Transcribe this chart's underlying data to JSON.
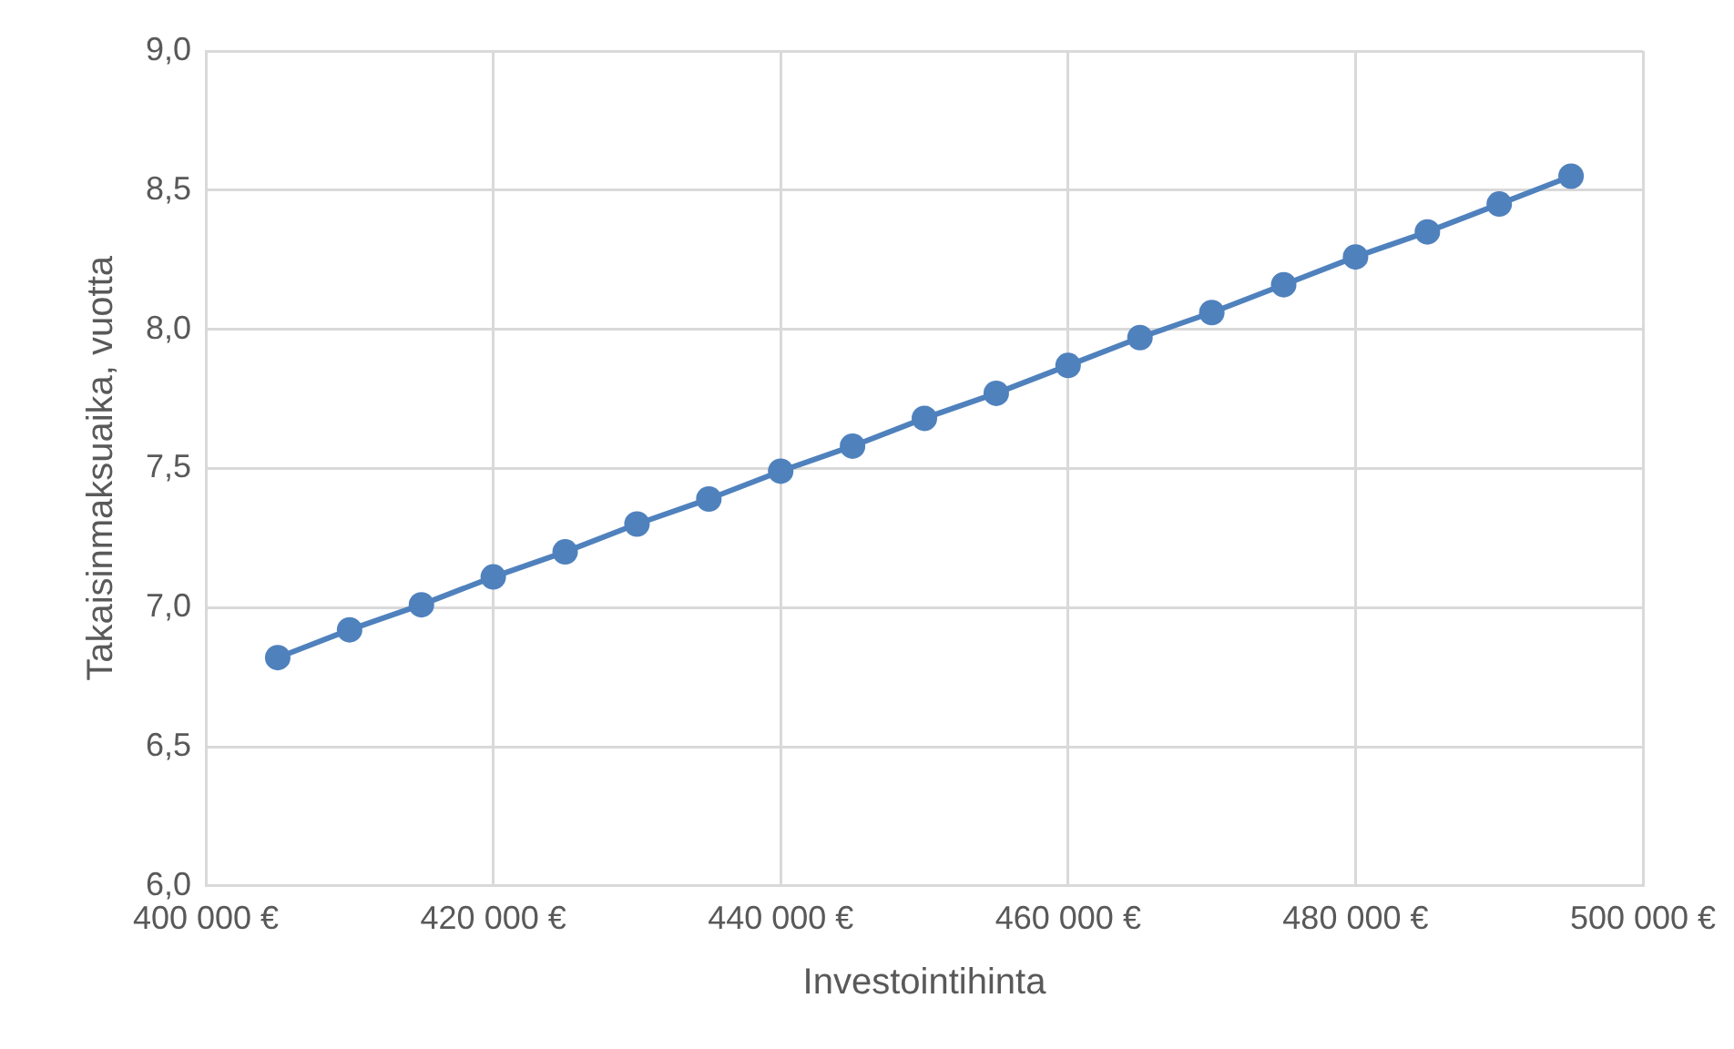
{
  "chart_data": {
    "type": "line",
    "xlabel": "Investointihinta",
    "ylabel": "Takaisinmaksuaika, vuotta",
    "x": [
      405000,
      410000,
      415000,
      420000,
      425000,
      430000,
      435000,
      440000,
      445000,
      450000,
      455000,
      460000,
      465000,
      470000,
      475000,
      480000,
      485000,
      490000,
      495000
    ],
    "series": [
      {
        "color": "#4f81bd",
        "values": [
          6.82,
          6.92,
          7.01,
          7.11,
          7.2,
          7.3,
          7.39,
          7.49,
          7.58,
          7.68,
          7.77,
          7.87,
          7.97,
          8.06,
          8.16,
          8.26,
          8.35,
          8.45,
          8.55
        ]
      }
    ],
    "xlim": [
      400000,
      500000
    ],
    "xticks": [
      {
        "value": 400000,
        "label": "400 000 €"
      },
      {
        "value": 420000,
        "label": "420 000 €"
      },
      {
        "value": 440000,
        "label": "440 000 €"
      },
      {
        "value": 460000,
        "label": "460 000 €"
      },
      {
        "value": 480000,
        "label": "480 000 €"
      },
      {
        "value": 500000,
        "label": "500 000 €"
      }
    ],
    "ylim": [
      6,
      9
    ],
    "yticks": [
      {
        "value": 6,
        "label": "6,0"
      },
      {
        "value": 6.5,
        "label": "6,5"
      },
      {
        "value": 7,
        "label": "7,0"
      },
      {
        "value": 7.5,
        "label": "7,5"
      },
      {
        "value": 8,
        "label": "8,0"
      },
      {
        "value": 8.5,
        "label": "8,5"
      },
      {
        "value": 9,
        "label": "9,0"
      }
    ],
    "grid": true,
    "legend": false,
    "marker": "circle",
    "line_style": "solid"
  }
}
